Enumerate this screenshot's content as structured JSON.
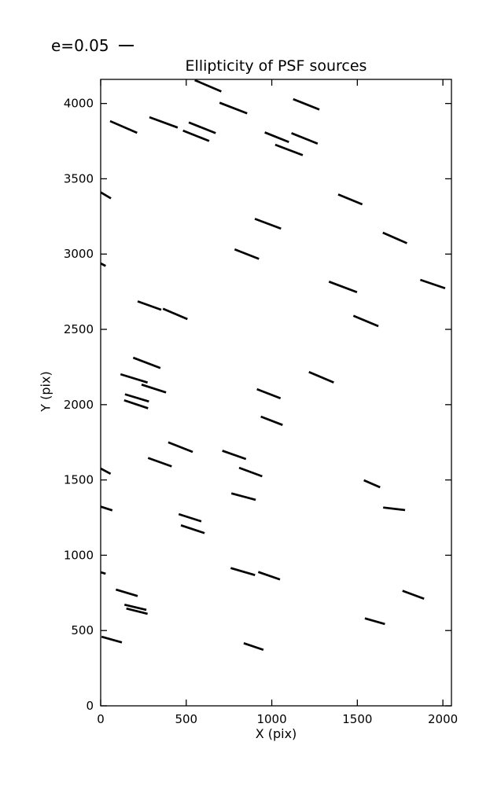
{
  "figure": {
    "background": "#ffffff",
    "ink_color": "#000000"
  },
  "legend": {
    "label": "e=0.05",
    "position": "upper-left-outside"
  },
  "chart_data": {
    "type": "scatter",
    "mark": "whisker-segments",
    "title": "Ellipticity of PSF sources",
    "xlabel": "X (pix)",
    "ylabel": "Y (pix)",
    "xlim": [
      0,
      2050
    ],
    "ylim": [
      0,
      4160
    ],
    "xticks": [
      0,
      500,
      1000,
      1500,
      2000
    ],
    "yticks": [
      0,
      500,
      1000,
      1500,
      2000,
      2500,
      3000,
      3500,
      4000
    ],
    "grid": false,
    "legend_entries": [
      {
        "label": "e=0.05",
        "sample": "horizontal-line"
      }
    ],
    "segments_units": "pix endpoints [x1,y1,x2,y2] in data coordinates",
    "segments": [
      [
        550,
        4155,
        705,
        4080
      ],
      [
        695,
        4005,
        856,
        3934
      ],
      [
        1125,
        4029,
        1278,
        3960
      ],
      [
        55,
        3883,
        213,
        3805
      ],
      [
        285,
        3909,
        450,
        3840
      ],
      [
        515,
        3874,
        672,
        3803
      ],
      [
        481,
        3820,
        634,
        3751
      ],
      [
        959,
        3808,
        1100,
        3744
      ],
      [
        1115,
        3803,
        1268,
        3733
      ],
      [
        1020,
        3726,
        1181,
        3657
      ],
      [
        1388,
        3396,
        1529,
        3330
      ],
      [
        0,
        3410,
        60,
        3370
      ],
      [
        901,
        3234,
        1054,
        3169
      ],
      [
        1649,
        3142,
        1790,
        3072
      ],
      [
        783,
        3031,
        925,
        2968
      ],
      [
        0,
        2938,
        29,
        2921
      ],
      [
        1334,
        2817,
        1498,
        2747
      ],
      [
        1868,
        2829,
        2013,
        2773
      ],
      [
        216,
        2686,
        354,
        2630
      ],
      [
        364,
        2637,
        507,
        2568
      ],
      [
        1477,
        2590,
        1623,
        2521
      ],
      [
        190,
        2312,
        349,
        2243
      ],
      [
        116,
        2202,
        274,
        2147
      ],
      [
        239,
        2133,
        382,
        2081
      ],
      [
        142,
        2069,
        282,
        2021
      ],
      [
        137,
        2029,
        277,
        1976
      ],
      [
        913,
        2103,
        1051,
        2042
      ],
      [
        936,
        1921,
        1063,
        1865
      ],
      [
        1217,
        2217,
        1362,
        2147
      ],
      [
        395,
        1750,
        538,
        1686
      ],
      [
        277,
        1646,
        415,
        1590
      ],
      [
        711,
        1694,
        849,
        1639
      ],
      [
        809,
        1581,
        944,
        1524
      ],
      [
        0,
        1576,
        58,
        1541
      ],
      [
        1538,
        1498,
        1633,
        1451
      ],
      [
        1651,
        1317,
        1779,
        1300
      ],
      [
        0,
        1323,
        68,
        1298
      ],
      [
        456,
        1273,
        588,
        1225
      ],
      [
        469,
        1199,
        607,
        1147
      ],
      [
        764,
        1411,
        906,
        1368
      ],
      [
        0,
        887,
        29,
        877
      ],
      [
        760,
        915,
        902,
        868
      ],
      [
        921,
        889,
        1048,
        839
      ],
      [
        89,
        772,
        216,
        729
      ],
      [
        139,
        672,
        267,
        637
      ],
      [
        150,
        646,
        274,
        611
      ],
      [
        5,
        459,
        124,
        421
      ],
      [
        836,
        416,
        951,
        372
      ],
      [
        1764,
        764,
        1890,
        711
      ],
      [
        1544,
        581,
        1661,
        543
      ]
    ]
  }
}
